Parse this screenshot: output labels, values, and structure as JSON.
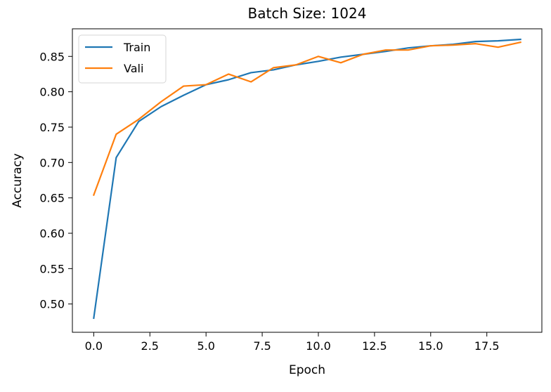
{
  "chart_data": {
    "type": "line",
    "title": "Batch Size: 1024",
    "xlabel": "Epoch",
    "ylabel": "Accuracy",
    "xlim": [
      -0.95,
      19.95
    ],
    "ylim": [
      0.46,
      0.889
    ],
    "x_ticks": [
      0,
      2.5,
      5,
      7.5,
      10,
      12.5,
      15,
      17.5
    ],
    "x_tick_labels": [
      "0.0",
      "2.5",
      "5.0",
      "7.5",
      "10.0",
      "12.5",
      "15.0",
      "17.5"
    ],
    "y_ticks": [
      0.5,
      0.55,
      0.6,
      0.65,
      0.7,
      0.75,
      0.8,
      0.85
    ],
    "y_tick_labels": [
      "0.50",
      "0.55",
      "0.60",
      "0.65",
      "0.70",
      "0.75",
      "0.80",
      "0.85"
    ],
    "grid": false,
    "legend_position": "upper-left",
    "x": [
      0,
      1,
      2,
      3,
      4,
      5,
      6,
      7,
      8,
      9,
      10,
      11,
      12,
      13,
      14,
      15,
      16,
      17,
      18,
      19
    ],
    "series": [
      {
        "name": "Train",
        "color": "#1f77b4",
        "values": [
          0.48,
          0.707,
          0.758,
          0.779,
          0.795,
          0.81,
          0.817,
          0.827,
          0.831,
          0.838,
          0.843,
          0.849,
          0.853,
          0.857,
          0.862,
          0.865,
          0.867,
          0.871,
          0.872,
          0.874
        ]
      },
      {
        "name": "Vali",
        "color": "#ff7f0e",
        "values": [
          0.654,
          0.74,
          0.761,
          0.786,
          0.808,
          0.81,
          0.825,
          0.814,
          0.834,
          0.838,
          0.85,
          0.841,
          0.853,
          0.859,
          0.859,
          0.865,
          0.866,
          0.868,
          0.863,
          0.87
        ]
      }
    ]
  }
}
